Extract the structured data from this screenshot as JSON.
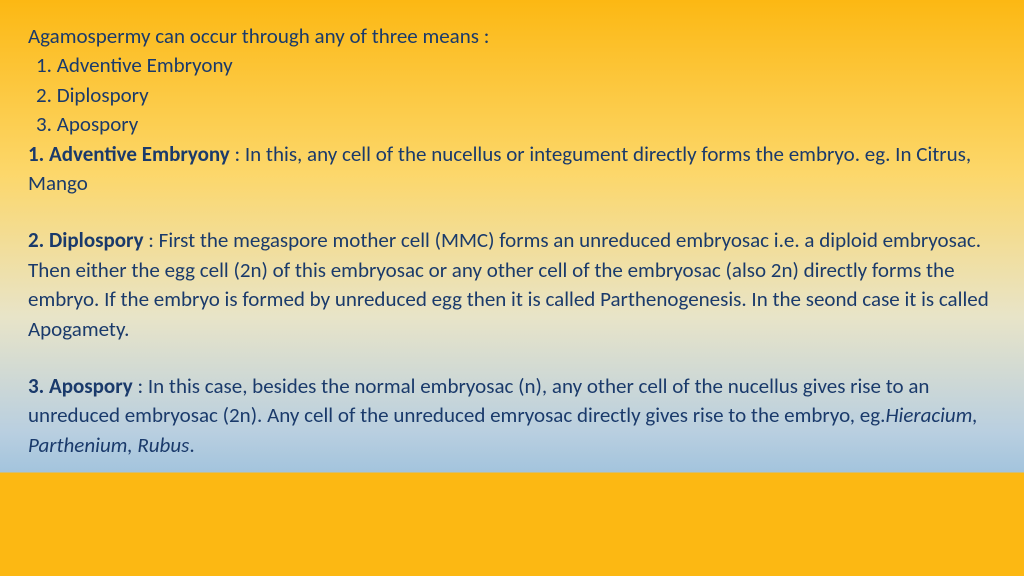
{
  "slide": {
    "intro": "Agamospermy can occur through any of three means :",
    "list": {
      "item1": " 1. Adventive Embryony",
      "item2": " 2. Diplospory",
      "item3": " 3. Apospory"
    },
    "section1": {
      "title": " 1. Adventive Embryony",
      "body": " : In this, any cell of the nucellus or integument directly forms the embryo. eg. In Citrus, Mango"
    },
    "section2": {
      "title": " 2. Diplospory",
      "body": " : First the megaspore mother cell (MMC) forms an unreduced embryosac i.e. a diploid embryosac. Then either the egg cell (2n) of this embryosac or any other cell of the embryosac (also 2n) directly forms the embryo. If the embryo is formed by unreduced egg then it is called Parthenogenesis. In the seond case it is called Apogamety."
    },
    "section3": {
      "title": "3. Apospory",
      "body1": " : In this case, besides the normal embryosac (n), any other cell of the nucellus gives rise to an unreduced embryosac (2n). Any cell of the unreduced emryosac directly gives rise to the  embryo, eg.",
      "examples": "Hieracium, Parthenium, Rubus",
      "body2": "."
    }
  },
  "colors": {
    "text": "#1a3a6b",
    "gradient_top": "#fcb813",
    "gradient_mid1": "#fcd76a",
    "gradient_mid2": "#e8e4c8",
    "gradient_mid3": "#b9cfe0",
    "gradient_bottom": "#fcb813"
  },
  "typography": {
    "font_family": "Calibri",
    "body_fontsize": 21,
    "line_height": 1.4
  }
}
